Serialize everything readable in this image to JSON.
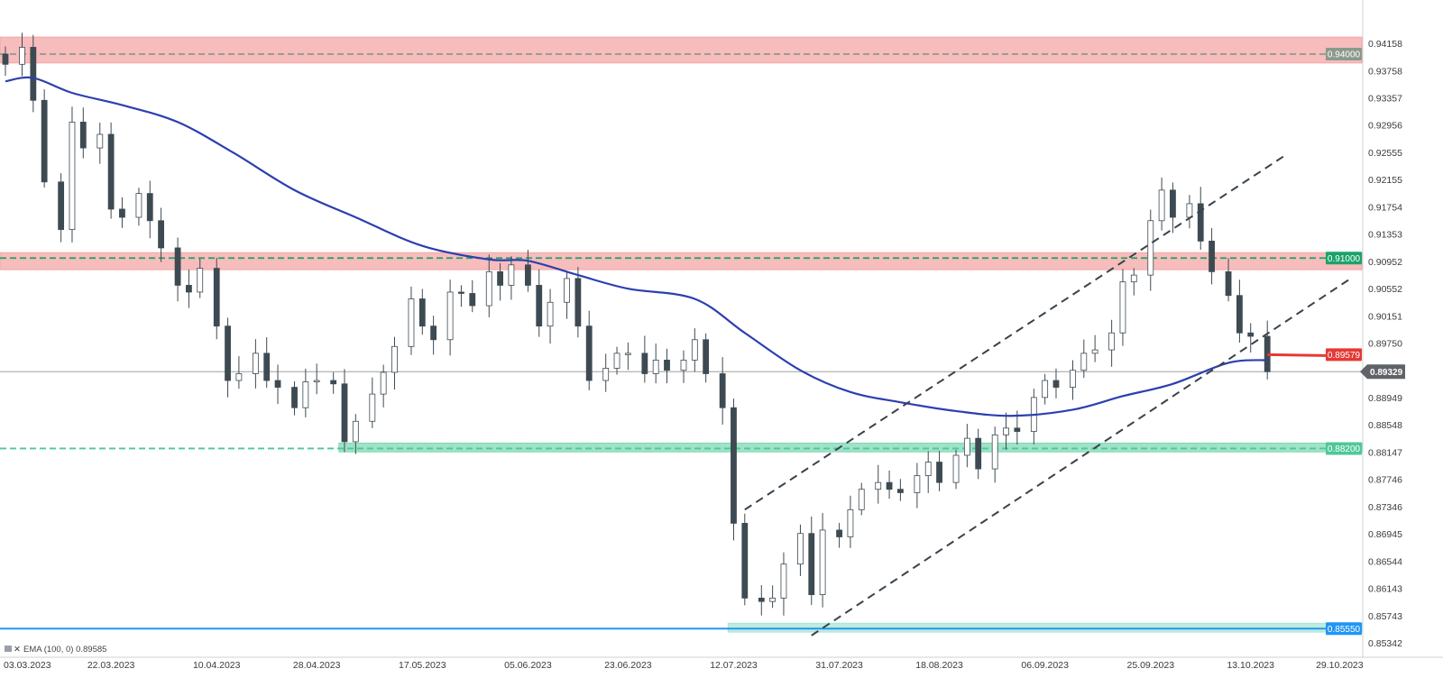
{
  "chart_data": {
    "type": "candlestick",
    "y_range": [
      0.85342,
      0.94358
    ],
    "y_ticks": [
      "0.94158",
      "0.93758",
      "0.93357",
      "0.92956",
      "0.92555",
      "0.92155",
      "0.91754",
      "0.91353",
      "0.90952",
      "0.90552",
      "0.90151",
      "0.89750",
      "0.89349",
      "0.88949",
      "0.88548",
      "0.88147",
      "0.87746",
      "0.87346",
      "0.86945",
      "0.86544",
      "0.86143",
      "0.85743",
      "0.85342"
    ],
    "x_range": [
      "2023-03-03",
      "2023-11-02"
    ],
    "x_ticks": [
      {
        "date": "2023-03-03",
        "label": "03.03.2023"
      },
      {
        "date": "2023-03-22",
        "label": "22.03.2023"
      },
      {
        "date": "2023-04-10",
        "label": "10.04.2023"
      },
      {
        "date": "2023-04-28",
        "label": "28.04.2023"
      },
      {
        "date": "2023-05-17",
        "label": "17.05.2023"
      },
      {
        "date": "2023-06-05",
        "label": "05.06.2023"
      },
      {
        "date": "2023-06-23",
        "label": "23.06.2023"
      },
      {
        "date": "2023-07-12",
        "label": "12.07.2023"
      },
      {
        "date": "2023-07-31",
        "label": "31.07.2023"
      },
      {
        "date": "2023-08-18",
        "label": "18.08.2023"
      },
      {
        "date": "2023-09-06",
        "label": "06.09.2023"
      },
      {
        "date": "2023-09-25",
        "label": "25.09.2023"
      },
      {
        "date": "2023-10-13",
        "label": "13.10.2023"
      },
      {
        "date": "2023-10-29",
        "label": "29.10.2023"
      }
    ],
    "close_series": [
      [
        "2023-03-03",
        0.9385
      ],
      [
        "2023-03-06",
        0.941
      ],
      [
        "2023-03-08",
        0.9332
      ],
      [
        "2023-03-10",
        0.9212
      ],
      [
        "2023-03-13",
        0.9142
      ],
      [
        "2023-03-15",
        0.93
      ],
      [
        "2023-03-17",
        0.9262
      ],
      [
        "2023-03-20",
        0.9282
      ],
      [
        "2023-03-22",
        0.9172
      ],
      [
        "2023-03-24",
        0.916
      ],
      [
        "2023-03-27",
        0.9195
      ],
      [
        "2023-03-29",
        0.9155
      ],
      [
        "2023-03-31",
        0.9115
      ],
      [
        "2023-04-03",
        0.906
      ],
      [
        "2023-04-05",
        0.905
      ],
      [
        "2023-04-07",
        0.9085
      ],
      [
        "2023-04-10",
        0.9
      ],
      [
        "2023-04-12",
        0.892
      ],
      [
        "2023-04-14",
        0.893
      ],
      [
        "2023-04-17",
        0.896
      ],
      [
        "2023-04-19",
        0.892
      ],
      [
        "2023-04-21",
        0.891
      ],
      [
        "2023-04-24",
        0.888
      ],
      [
        "2023-04-26",
        0.8918
      ],
      [
        "2023-04-28",
        0.892
      ],
      [
        "2023-05-01",
        0.8915
      ],
      [
        "2023-05-03",
        0.883
      ],
      [
        "2023-05-05",
        0.886
      ],
      [
        "2023-05-08",
        0.89
      ],
      [
        "2023-05-10",
        0.8932
      ],
      [
        "2023-05-12",
        0.897
      ],
      [
        "2023-05-15",
        0.904
      ],
      [
        "2023-05-17",
        0.9
      ],
      [
        "2023-05-19",
        0.898
      ],
      [
        "2023-05-22",
        0.905
      ],
      [
        "2023-05-24",
        0.9048
      ],
      [
        "2023-05-26",
        0.903
      ],
      [
        "2023-05-29",
        0.908
      ],
      [
        "2023-05-31",
        0.906
      ],
      [
        "2023-06-02",
        0.909
      ],
      [
        "2023-06-05",
        0.906
      ],
      [
        "2023-06-07",
        0.9
      ],
      [
        "2023-06-09",
        0.9035
      ],
      [
        "2023-06-12",
        0.907
      ],
      [
        "2023-06-14",
        0.9
      ],
      [
        "2023-06-16",
        0.892
      ],
      [
        "2023-06-19",
        0.8938
      ],
      [
        "2023-06-21",
        0.896
      ],
      [
        "2023-06-23",
        0.896
      ],
      [
        "2023-06-26",
        0.893
      ],
      [
        "2023-06-28",
        0.895
      ],
      [
        "2023-06-30",
        0.8935
      ],
      [
        "2023-07-03",
        0.895
      ],
      [
        "2023-07-05",
        0.898
      ],
      [
        "2023-07-07",
        0.893
      ],
      [
        "2023-07-10",
        0.888
      ],
      [
        "2023-07-12",
        0.871
      ],
      [
        "2023-07-14",
        0.86
      ],
      [
        "2023-07-17",
        0.8595
      ],
      [
        "2023-07-19",
        0.86
      ],
      [
        "2023-07-21",
        0.865
      ],
      [
        "2023-07-24",
        0.8695
      ],
      [
        "2023-07-26",
        0.8605
      ],
      [
        "2023-07-28",
        0.87
      ],
      [
        "2023-07-31",
        0.869
      ],
      [
        "2023-08-02",
        0.873
      ],
      [
        "2023-08-04",
        0.876
      ],
      [
        "2023-08-07",
        0.877
      ],
      [
        "2023-08-09",
        0.876
      ],
      [
        "2023-08-11",
        0.8755
      ],
      [
        "2023-08-14",
        0.878
      ],
      [
        "2023-08-16",
        0.88
      ],
      [
        "2023-08-18",
        0.877
      ],
      [
        "2023-08-21",
        0.881
      ],
      [
        "2023-08-23",
        0.8835
      ],
      [
        "2023-08-25",
        0.879
      ],
      [
        "2023-08-28",
        0.884
      ],
      [
        "2023-08-30",
        0.885
      ],
      [
        "2023-09-01",
        0.8845
      ],
      [
        "2023-09-04",
        0.8895
      ],
      [
        "2023-09-06",
        0.892
      ],
      [
        "2023-09-08",
        0.891
      ],
      [
        "2023-09-11",
        0.8935
      ],
      [
        "2023-09-13",
        0.896
      ],
      [
        "2023-09-15",
        0.8965
      ],
      [
        "2023-09-18",
        0.899
      ],
      [
        "2023-09-20",
        0.9065
      ],
      [
        "2023-09-22",
        0.9075
      ],
      [
        "2023-09-25",
        0.9155
      ],
      [
        "2023-09-27",
        0.92
      ],
      [
        "2023-09-29",
        0.916
      ],
      [
        "2023-10-02",
        0.918
      ],
      [
        "2023-10-04",
        0.9125
      ],
      [
        "2023-10-06",
        0.908
      ],
      [
        "2023-10-09",
        0.9045
      ],
      [
        "2023-10-11",
        0.899
      ],
      [
        "2023-10-13",
        0.8985
      ],
      [
        "2023-10-16",
        0.8933
      ]
    ],
    "ema_series": [
      [
        "2023-03-03",
        0.936
      ],
      [
        "2023-03-08",
        0.9365
      ],
      [
        "2023-03-15",
        0.9343
      ],
      [
        "2023-03-24",
        0.9325
      ],
      [
        "2023-04-03",
        0.93
      ],
      [
        "2023-04-13",
        0.9255
      ],
      [
        "2023-04-24",
        0.92
      ],
      [
        "2023-05-05",
        0.916
      ],
      [
        "2023-05-17",
        0.9118
      ],
      [
        "2023-05-29",
        0.9098
      ],
      [
        "2023-06-05",
        0.9096
      ],
      [
        "2023-06-14",
        0.9075
      ],
      [
        "2023-06-23",
        0.9055
      ],
      [
        "2023-07-05",
        0.904
      ],
      [
        "2023-07-14",
        0.899
      ],
      [
        "2023-07-24",
        0.8935
      ],
      [
        "2023-08-02",
        0.8903
      ],
      [
        "2023-08-11",
        0.8888
      ],
      [
        "2023-08-21",
        0.8875
      ],
      [
        "2023-08-31",
        0.8868
      ],
      [
        "2023-09-11",
        0.8877
      ],
      [
        "2023-09-20",
        0.8897
      ],
      [
        "2023-09-29",
        0.8915
      ],
      [
        "2023-10-09",
        0.8946
      ],
      [
        "2023-10-16",
        0.895
      ]
    ],
    "ema_legend": "EMA (100, 0) 0.89585",
    "zones": [
      {
        "name": "resistance-upper",
        "low": 0.9387,
        "high": 0.9425,
        "color": "#f4a6a6"
      },
      {
        "name": "resistance-middle",
        "low": 0.9083,
        "high": 0.9108,
        "color": "#f4a6a6"
      },
      {
        "name": "support-green",
        "start": "2023-05-02",
        "low": 0.8815,
        "high": 0.8828,
        "color": "#7fd8b4"
      },
      {
        "name": "support-bottom",
        "start": "2023-07-11",
        "low": 0.855,
        "high": 0.8563,
        "color": "#a8e6d4"
      }
    ],
    "levels": [
      {
        "value": 0.94,
        "label": "0.94000",
        "color": "#8a9a8a",
        "style": "dashed"
      },
      {
        "value": 0.91,
        "label": "0.91000",
        "color": "#1ba36a",
        "style": "dashed"
      },
      {
        "value": 0.882,
        "label": "0.88200",
        "color": "#4fc79a",
        "style": "dashed"
      },
      {
        "value": 0.8555,
        "label": "0.85550",
        "color": "#2196f3",
        "style": "solid"
      }
    ],
    "current_price": {
      "value": 0.8933,
      "label": "0.89329"
    },
    "red_level": {
      "value": 0.8958,
      "label": "0.89579",
      "start": "2023-10-16"
    },
    "channel_lines": [
      {
        "from": [
          "2023-07-14",
          0.873
        ],
        "to": [
          "2023-10-19",
          0.925
        ]
      },
      {
        "from": [
          "2023-07-26",
          0.8545
        ],
        "to": [
          "2023-10-31",
          0.907
        ]
      }
    ],
    "colors": {
      "bear": "#3e4a52",
      "bull": "#ffffff",
      "ema": "#2c3fb0",
      "grid": "#e8e8e8",
      "channel": "#39424a"
    }
  },
  "legend": {
    "text": "EMA (100, 0) 0.89585"
  }
}
